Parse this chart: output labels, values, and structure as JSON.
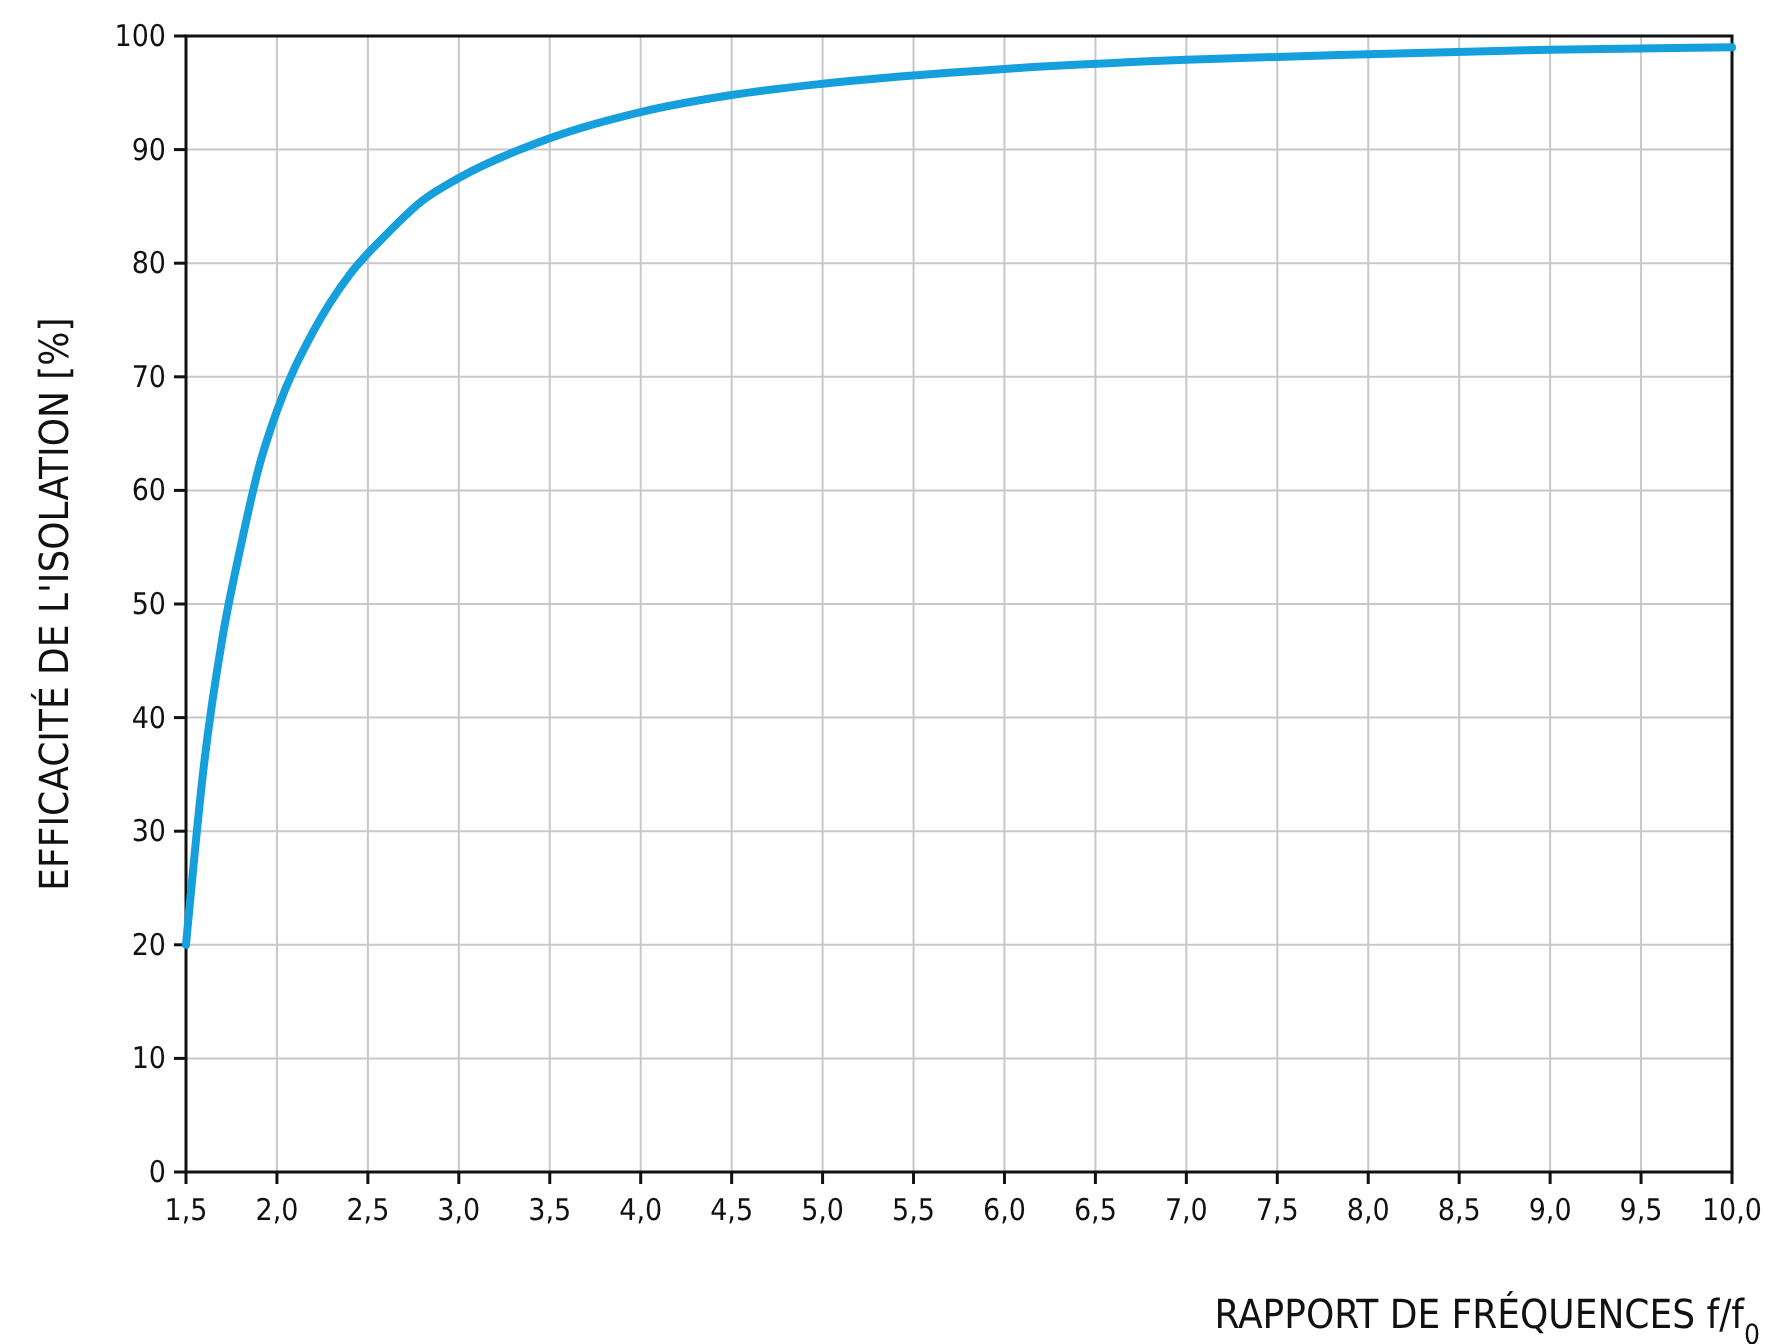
{
  "chart_data": {
    "type": "line",
    "xlabel": "RAPPORT DE FRÉQUENCES f/f$_{0}$",
    "ylabel": "EFFICACITÉ DE L'ISOLATION [%]",
    "x": [
      1.5,
      1.6,
      1.7,
      1.8,
      1.9,
      2.0,
      2.2,
      2.4,
      2.6,
      2.8,
      3.0,
      3.5,
      4.0,
      4.5,
      5.0,
      6.0,
      7.0,
      8.0,
      9.0,
      10.0
    ],
    "series": [
      {
        "color": "#159fdc",
        "values": [
          20,
          36,
          47,
          55,
          62,
          67,
          74,
          79,
          82.5,
          85.5,
          87.5,
          91,
          93.3,
          94.8,
          95.8,
          97.1,
          97.9,
          98.4,
          98.8,
          99
        ]
      }
    ],
    "xlim": [
      1.5,
      10
    ],
    "ylim": [
      0,
      100
    ],
    "xticks": [
      {
        "value": 1.5,
        "label": "1,5"
      },
      {
        "value": 2,
        "label": "2,0"
      },
      {
        "value": 2.5,
        "label": "2,5"
      },
      {
        "value": 3,
        "label": "3,0"
      },
      {
        "value": 3.5,
        "label": "3,5"
      },
      {
        "value": 4,
        "label": "4,0"
      },
      {
        "value": 4.5,
        "label": "4,5"
      },
      {
        "value": 5,
        "label": "5,0"
      },
      {
        "value": 5.5,
        "label": "5,5"
      },
      {
        "value": 6,
        "label": "6,0"
      },
      {
        "value": 6.5,
        "label": "6,5"
      },
      {
        "value": 7,
        "label": "7,0"
      },
      {
        "value": 7.5,
        "label": "7,5"
      },
      {
        "value": 8,
        "label": "8,0"
      },
      {
        "value": 8.5,
        "label": "8,5"
      },
      {
        "value": 9,
        "label": "9,0"
      },
      {
        "value": 9.5,
        "label": "9,5"
      },
      {
        "value": 10,
        "label": "10,0"
      }
    ],
    "yticks": [
      0,
      10,
      20,
      30,
      40,
      50,
      60,
      70,
      80,
      90,
      100
    ],
    "grid": true,
    "marker": "none",
    "line_style": "solid"
  }
}
